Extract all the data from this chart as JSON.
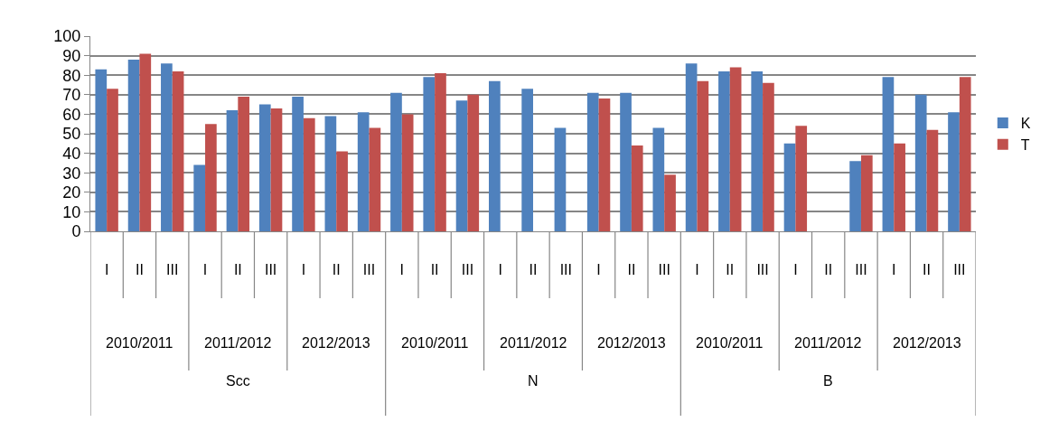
{
  "chart_data": {
    "type": "bar",
    "categories": [
      "I",
      "II",
      "III",
      "I",
      "II",
      "III",
      "I",
      "II",
      "III",
      "I",
      "II",
      "III",
      "I",
      "II",
      "III",
      "I",
      "II",
      "III",
      "I",
      "II",
      "III",
      "I",
      "II",
      "III",
      "I",
      "II",
      "III"
    ],
    "series": [
      {
        "name": "K",
        "color": "#4f81bd",
        "values": [
          83,
          88,
          86,
          34,
          62,
          65,
          69,
          59,
          61,
          71,
          79,
          67,
          77,
          73,
          53,
          71,
          71,
          53,
          86,
          82,
          82,
          45,
          null,
          36,
          79,
          70,
          61
        ]
      },
      {
        "name": "T",
        "color": "#c0504d",
        "values": [
          73,
          91,
          82,
          55,
          69,
          63,
          58,
          41,
          53,
          60,
          81,
          70,
          null,
          null,
          null,
          68,
          44,
          29,
          77,
          84,
          76,
          54,
          null,
          39,
          45,
          52,
          79
        ]
      }
    ],
    "annotations": [
      "2010/2011",
      "2011/2012",
      "2012/2013",
      "2010/2011",
      "2011/2012",
      "2012/2013",
      "2010/2011",
      "2011/2012",
      "2012/2013",
      "Scc",
      "N",
      "B"
    ],
    "ylim": [
      0,
      100
    ],
    "yticks": [
      0,
      10,
      20,
      30,
      40,
      50,
      60,
      70,
      80,
      90,
      100
    ],
    "grid": "y",
    "legend": "right"
  }
}
